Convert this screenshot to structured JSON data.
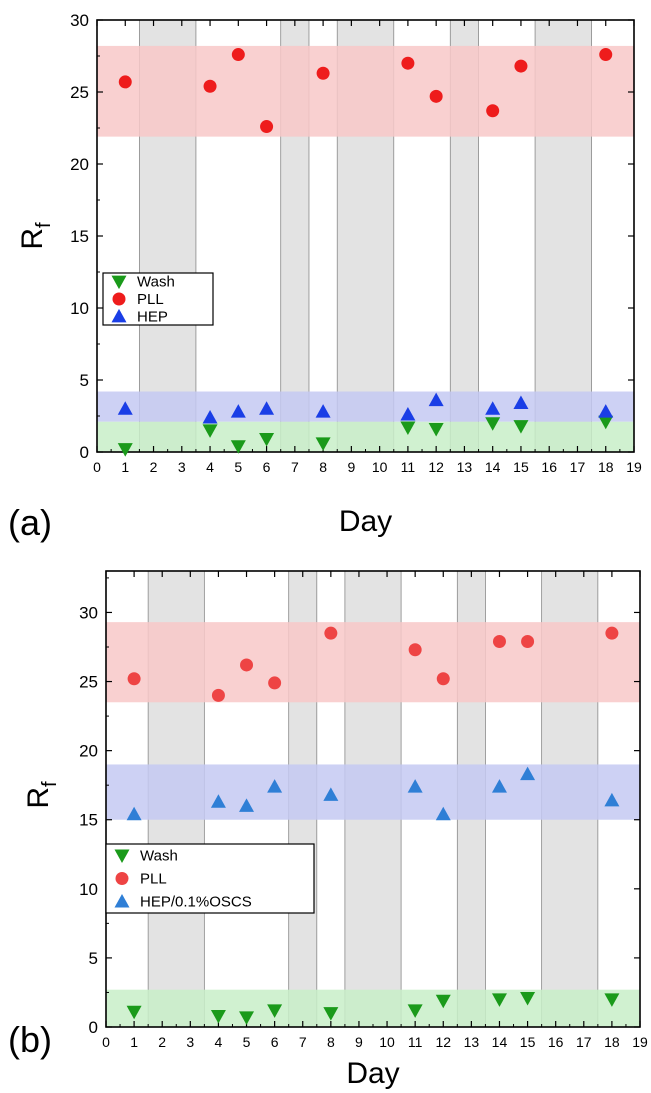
{
  "chart_data": [
    {
      "panel": "(a)",
      "type": "scatter",
      "xlabel": "Day",
      "ylabel": "R",
      "ylabel_sub": "f",
      "xlim": [
        0,
        19
      ],
      "ylim": [
        0,
        30
      ],
      "x_ticks": [
        0,
        1,
        2,
        3,
        4,
        5,
        6,
        7,
        8,
        9,
        10,
        11,
        12,
        13,
        14,
        15,
        16,
        17,
        18,
        19
      ],
      "y_ticks": [
        0,
        5,
        10,
        15,
        20,
        25,
        30
      ],
      "gray_bands": [
        [
          1.5,
          3.5
        ],
        [
          6.5,
          7.5
        ],
        [
          8.5,
          10.5
        ],
        [
          12.5,
          13.5
        ],
        [
          15.5,
          17.5
        ]
      ],
      "horizontal_bands": [
        {
          "series": "PLL",
          "range": [
            21.9,
            28.2
          ],
          "color": "#f8c8c8"
        },
        {
          "series": "HEP",
          "range": [
            2.1,
            4.2
          ],
          "color": "#c4c9f2"
        },
        {
          "series": "Wash",
          "range": [
            0,
            2.1
          ],
          "color": "#c8efc8"
        }
      ],
      "legend": {
        "position": "middle-left",
        "entries": [
          "Wash",
          "PLL",
          "HEP"
        ]
      },
      "series": [
        {
          "name": "Wash",
          "marker": "triangle-down",
          "color": "#1a9a1a",
          "x": [
            1,
            4,
            5,
            6,
            8,
            11,
            12,
            14,
            15,
            18
          ],
          "y": [
            0.2,
            1.5,
            0.4,
            0.9,
            0.6,
            1.7,
            1.6,
            2.0,
            1.8,
            2.1
          ]
        },
        {
          "name": "PLL",
          "marker": "circle",
          "color": "#ee1c1c",
          "x": [
            1,
            4,
            5,
            6,
            8,
            11,
            12,
            14,
            15,
            18
          ],
          "y": [
            25.7,
            25.4,
            27.6,
            22.6,
            26.3,
            27.0,
            24.7,
            23.7,
            26.8,
            27.6
          ]
        },
        {
          "name": "HEP",
          "marker": "triangle-up",
          "color": "#1a3ee6",
          "x": [
            1,
            4,
            5,
            6,
            8,
            11,
            12,
            14,
            15,
            18
          ],
          "y": [
            3.0,
            2.4,
            2.8,
            3.0,
            2.8,
            2.6,
            3.6,
            3.0,
            3.4,
            2.8
          ]
        }
      ]
    },
    {
      "panel": "(b)",
      "type": "scatter",
      "xlabel": "Day",
      "ylabel": "R",
      "ylabel_sub": "f",
      "xlim": [
        0,
        19
      ],
      "ylim": [
        0,
        33
      ],
      "x_ticks": [
        0,
        1,
        2,
        3,
        4,
        5,
        6,
        7,
        8,
        9,
        10,
        11,
        12,
        13,
        14,
        15,
        16,
        17,
        18,
        19
      ],
      "y_ticks": [
        0,
        5,
        10,
        15,
        20,
        25,
        30
      ],
      "gray_bands": [
        [
          1.5,
          3.5
        ],
        [
          6.5,
          7.5
        ],
        [
          8.5,
          10.5
        ],
        [
          12.5,
          13.5
        ],
        [
          15.5,
          17.5
        ]
      ],
      "horizontal_bands": [
        {
          "series": "PLL",
          "range": [
            23.5,
            29.3
          ],
          "color": "#f8c8c8"
        },
        {
          "series": "HEP/0.1%OSCS",
          "range": [
            15.0,
            19.0
          ],
          "color": "#c4c9f2"
        },
        {
          "series": "Wash",
          "range": [
            0,
            2.7
          ],
          "color": "#c8efc8"
        }
      ],
      "legend": {
        "position": "middle-left",
        "entries": [
          "Wash",
          "PLL",
          "HEP/0.1%OSCS"
        ]
      },
      "series": [
        {
          "name": "Wash",
          "marker": "triangle-down",
          "color": "#1a9a1a",
          "x": [
            1,
            4,
            5,
            6,
            8,
            11,
            12,
            14,
            15,
            18
          ],
          "y": [
            1.1,
            0.8,
            0.7,
            1.2,
            1.0,
            1.2,
            1.9,
            2.0,
            2.1,
            2.0
          ]
        },
        {
          "name": "PLL",
          "marker": "circle",
          "color": "#ee4444",
          "x": [
            1,
            4,
            5,
            6,
            8,
            11,
            12,
            14,
            15,
            18
          ],
          "y": [
            25.2,
            24.0,
            26.2,
            24.9,
            28.5,
            27.3,
            25.2,
            27.9,
            27.9,
            28.5
          ]
        },
        {
          "name": "HEP/0.1%OSCS",
          "marker": "triangle-up",
          "color": "#2f7fd6",
          "x": [
            1,
            4,
            5,
            6,
            8,
            11,
            12,
            14,
            15,
            18
          ],
          "y": [
            15.4,
            16.3,
            16.0,
            17.4,
            16.8,
            17.4,
            15.4,
            17.4,
            18.3,
            16.4
          ]
        }
      ]
    }
  ]
}
